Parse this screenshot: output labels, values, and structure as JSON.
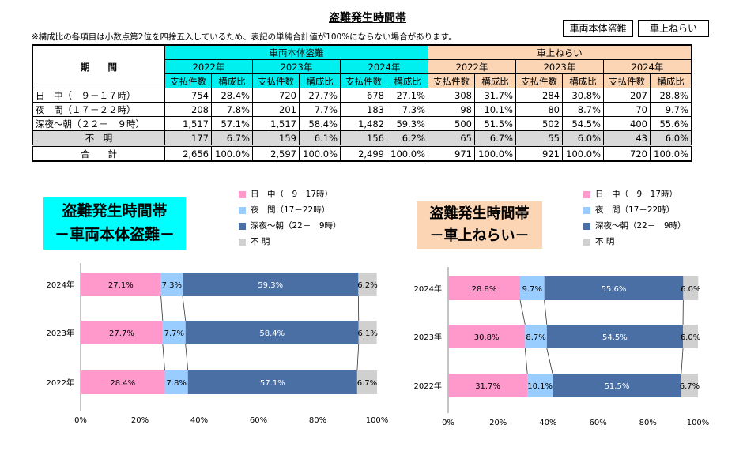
{
  "title": "盗難発生時間帯",
  "note": "※構成比の各項目は小数点第2位を四捨五入しているため、表記の単純合計値が100%にならない場合があります。",
  "buttons": {
    "vehicle": "車両本体盗難",
    "parts": "車上ねらい"
  },
  "table": {
    "period_header": "期　　間",
    "group1": "車両本体盗難",
    "group2": "車上ねらい",
    "years": [
      "2022年",
      "2023年",
      "2024年"
    ],
    "sub": [
      "支払件数",
      "構成比"
    ],
    "rows": [
      {
        "label": "日　中（　９－１７時）",
        "values": [
          "754",
          "28.4%",
          "720",
          "27.7%",
          "678",
          "27.1%",
          "308",
          "31.7%",
          "284",
          "30.8%",
          "207",
          "28.8%"
        ]
      },
      {
        "label": "夜　間（１７－２２時）",
        "values": [
          "208",
          "7.8%",
          "201",
          "7.7%",
          "183",
          "7.3%",
          "98",
          "10.1%",
          "80",
          "8.7%",
          "70",
          "9.7%"
        ]
      },
      {
        "label": "深夜～朝（２２－　９時）",
        "values": [
          "1,517",
          "57.1%",
          "1,517",
          "58.4%",
          "1,482",
          "59.3%",
          "500",
          "51.5%",
          "502",
          "54.5%",
          "400",
          "55.6%"
        ]
      },
      {
        "label": "不　明",
        "values": [
          "177",
          "6.7%",
          "159",
          "6.1%",
          "156",
          "6.2%",
          "65",
          "6.7%",
          "55",
          "6.0%",
          "43",
          "6.0%"
        ]
      },
      {
        "label": "合　　計",
        "values": [
          "2,656",
          "100.0%",
          "2,597",
          "100.0%",
          "2,499",
          "100.0%",
          "971",
          "100.0%",
          "921",
          "100.0%",
          "720",
          "100.0%"
        ]
      }
    ]
  },
  "chart_data": [
    {
      "type": "bar",
      "stacked": true,
      "orientation": "horizontal",
      "title_line1": "盗難発生時間帯",
      "title_line2": "－車両本体盗難－",
      "categories": [
        "2024年",
        "2023年",
        "2022年"
      ],
      "series": [
        {
          "name": "日　中（　9－17時）",
          "values": [
            27.1,
            27.7,
            28.4
          ]
        },
        {
          "name": "夜　間（17－22時）",
          "values": [
            7.3,
            7.7,
            7.8
          ]
        },
        {
          "name": "深夜～朝（22－　9時）",
          "values": [
            59.3,
            58.4,
            57.1
          ]
        },
        {
          "name": "不 明",
          "values": [
            6.2,
            6.1,
            6.7
          ]
        }
      ],
      "xticks": [
        "0%",
        "20%",
        "40%",
        "60%",
        "80%",
        "100%"
      ],
      "xlim": [
        0,
        100
      ],
      "legend": "top-right"
    },
    {
      "type": "bar",
      "stacked": true,
      "orientation": "horizontal",
      "title_line1": "盗難発生時間帯",
      "title_line2": "－車上ねらい－",
      "categories": [
        "2024年",
        "2023年",
        "2022年"
      ],
      "series": [
        {
          "name": "日　中（　9－17時）",
          "values": [
            28.8,
            30.8,
            31.7
          ]
        },
        {
          "name": "夜　間（17－22時）",
          "values": [
            9.7,
            8.7,
            10.1
          ]
        },
        {
          "name": "深夜～朝（22－　9時）",
          "values": [
            55.6,
            54.5,
            51.5
          ]
        },
        {
          "name": "不 明",
          "values": [
            6.0,
            6.0,
            6.7
          ]
        }
      ],
      "xticks": [
        "0%",
        "20%",
        "40%",
        "60%",
        "80%",
        "100%"
      ],
      "xlim": [
        0,
        100
      ],
      "legend": "top-right"
    }
  ],
  "colors": [
    "#ff99cc",
    "#99ccff",
    "#4a6fa5",
    "#d0d0d0"
  ],
  "label_colors": [
    "#000",
    "#000",
    "#fff",
    "#000"
  ]
}
